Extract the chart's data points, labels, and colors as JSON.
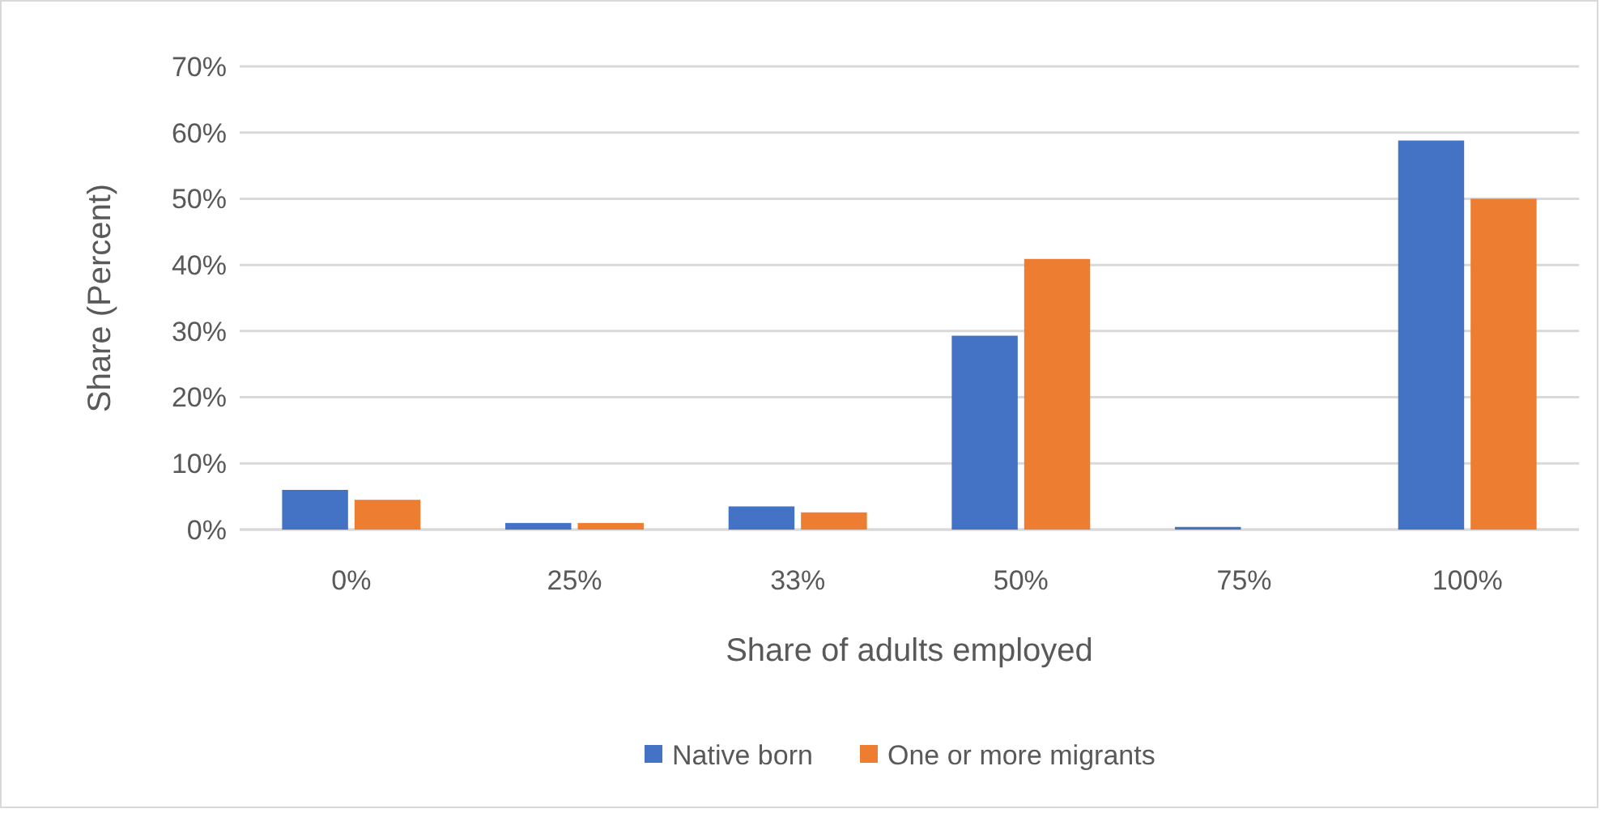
{
  "chart_data": {
    "type": "bar",
    "xlabel": "Share of adults employed",
    "ylabel": "Share (Percent)",
    "categories": [
      "0%",
      "25%",
      "33%",
      "50%",
      "75%",
      "100%"
    ],
    "series": [
      {
        "name": "Native born",
        "color": "#4472c4",
        "values": [
          6.0,
          1.0,
          3.5,
          29.3,
          0.4,
          58.8
        ]
      },
      {
        "name": "One or more migrants",
        "color": "#ed7d31",
        "values": [
          4.5,
          1.0,
          2.6,
          40.9,
          0,
          50.0
        ]
      }
    ],
    "ylim": [
      0,
      70
    ],
    "yticks": [
      {
        "value": 0,
        "label": "0%"
      },
      {
        "value": 10,
        "label": "10%"
      },
      {
        "value": 20,
        "label": "20%"
      },
      {
        "value": 30,
        "label": "30%"
      },
      {
        "value": 40,
        "label": "40%"
      },
      {
        "value": 50,
        "label": "50%"
      },
      {
        "value": 60,
        "label": "60%"
      },
      {
        "value": 70,
        "label": "70%"
      }
    ],
    "grid": "y",
    "legend": "bottom"
  }
}
